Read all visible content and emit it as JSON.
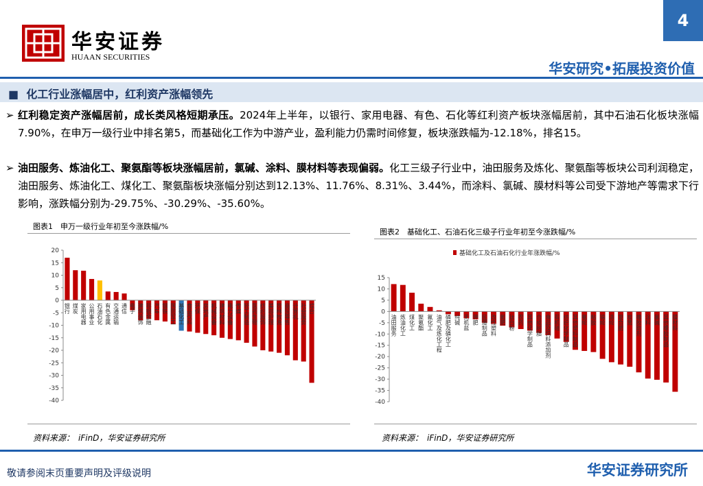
{
  "header": {
    "logo_cn": "华安证券",
    "logo_en": "HUAAN SECURITIES",
    "page_number": "4",
    "slogan": "华安研究•拓展投资价值"
  },
  "section": {
    "title": "化工行业涨幅居中，红利资产涨幅领先"
  },
  "bullets": [
    {
      "lead": "红利稳定资产涨幅居前，成长类风格短期承压。",
      "text": "2024年上半年，以银行、家用电器、有色、石化等红利资产板块涨幅居前，其中石油石化板块涨幅7.90%，在申万一级行业中排名第5，而基础化工作为中游产业，盈利能力仍需时间修复，板块涨跌幅为-12.18%，排名15。"
    },
    {
      "lead": "油田服务、炼油化工、聚氨酯等板块涨幅居前，氯碱、涂料、膜材料等表现偏弱。",
      "text": "化工三级子行业中，油田服务及炼化、聚氨酯等板块公司利润稳定，油田服务、炼油化工、煤化工、聚氨酯板块涨幅分别达到12.13%、11.76%、8.31%、3.44%，而涂料、氯碱、膜材料等公司受下游地产等需求下行影响，涨跌幅分别为-29.75%、-30.29%、-35.60%。"
    }
  ],
  "charts": [
    {
      "caption": "图表1　申万一级行业年初至今涨跌幅/%",
      "source": "资料来源：　iFinD，华安证券研究所",
      "chart_data": {
        "type": "bar",
        "categories": [
          "银行",
          "煤炭",
          "家用电器",
          "公用事业",
          "石油石化",
          "有色金属",
          "交通运输",
          "通信",
          "电子",
          "建筑装饰",
          "非银金融",
          "汽车",
          "钢铁",
          "国防军工",
          "基础化工",
          "食品饮料",
          "环保",
          "房地产",
          "机械设备",
          "建筑材料",
          "电力设备",
          "传媒",
          "轻工制造",
          "医药生物",
          "纺织服饰",
          "美容护理",
          "农林牧渔",
          "商贸零售",
          "计算机",
          "社会服务",
          "综合"
        ],
        "values": [
          17,
          12,
          11.8,
          8.5,
          7.9,
          3.5,
          3.3,
          2.7,
          -4,
          -8,
          -7.5,
          -8,
          -8.5,
          -9.5,
          -12.18,
          -12.5,
          -13,
          -13.5,
          -14,
          -15,
          -15.5,
          -16,
          -17,
          -18.5,
          -20,
          -20.5,
          -21,
          -22,
          -24,
          -24.5,
          -33
        ],
        "colors": [
          "#c00000",
          "#c00000",
          "#c00000",
          "#c00000",
          "#ffc000",
          "#c00000",
          "#c00000",
          "#c00000",
          "#c00000",
          "#c00000",
          "#c00000",
          "#c00000",
          "#c00000",
          "#c00000",
          "#2e75b6",
          "#c00000",
          "#c00000",
          "#c00000",
          "#c00000",
          "#c00000",
          "#c00000",
          "#c00000",
          "#c00000",
          "#c00000",
          "#c00000",
          "#c00000",
          "#c00000",
          "#c00000",
          "#c00000",
          "#c00000",
          "#c00000"
        ],
        "ylim": [
          -40,
          20
        ],
        "yticks": [
          20,
          15,
          10,
          5,
          0,
          -5,
          -10,
          -15,
          -20,
          -25,
          -30,
          -35,
          -40
        ]
      }
    },
    {
      "caption": "图表2　基础化工、石油石化三级子行业年初至今涨跌幅/%",
      "source": "资料来源：　iFinD，华安证券研究所",
      "chart_data": {
        "type": "bar",
        "categories": [
          "油田服务",
          "炼油化工",
          "煤化工",
          "聚氨酯",
          "氟化工",
          "油气及炼化工程",
          "磷肥及磷化工",
          "纯碱",
          "无机盐",
          "钾肥",
          "民爆制品",
          "改性塑料",
          "氮肥",
          "钛白粉",
          "农药",
          "其他化学制品",
          "合成树脂",
          "食品及饲料添加剂",
          "有机硅",
          "纺织化学制品",
          "其他塑料制品",
          "氨纶",
          "粘胶",
          "锦纶",
          "涤纶",
          "复合肥",
          "炭黑",
          "橡胶助剂",
          "涂料",
          "氯碱",
          "其他橡胶制品",
          "膜材料"
        ],
        "series": [
          {
            "name": "基础化工及石油石化行业年涨跌幅/%",
            "color": "#c00000",
            "values": [
              12.13,
              11.76,
              8.31,
              3.44,
              2,
              0.5,
              -1.2,
              -2,
              -3,
              -3.5,
              -5,
              -5.5,
              -6.3,
              -7,
              -7.8,
              -8.5,
              -9.5,
              -10.5,
              -12,
              -13.5,
              -17,
              -17.5,
              -18,
              -21,
              -22.5,
              -23.5,
              -24.5,
              -27,
              -29.75,
              -30.29,
              -31.5,
              -35.6
            ]
          }
        ],
        "ylim": [
          -40,
          15
        ],
        "yticks": [
          15,
          10,
          5,
          0,
          -5,
          -10,
          -15,
          -20,
          -25,
          -30,
          -35,
          -40
        ]
      }
    }
  ],
  "footer": {
    "disclaimer": "敬请参阅末页重要声明及评级说明",
    "org": "华安证券研究所"
  }
}
